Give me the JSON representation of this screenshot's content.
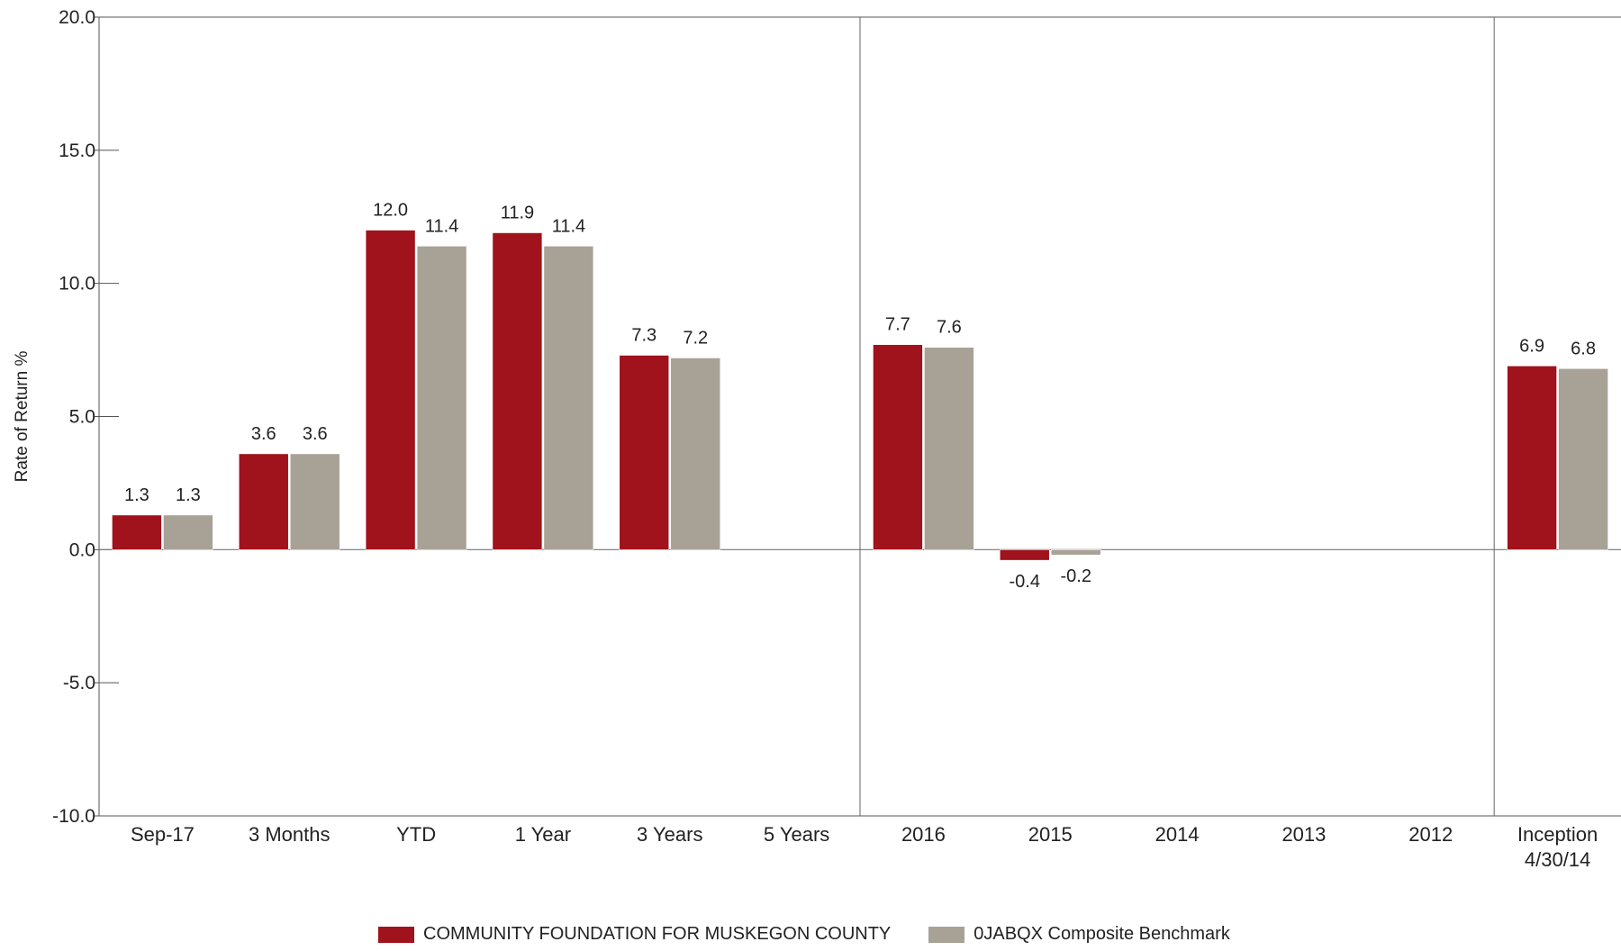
{
  "chart_data": {
    "type": "bar",
    "ylabel": "Rate of Return %",
    "ylim": [
      -10,
      20
    ],
    "yticks": [
      "20.0",
      "15.0",
      "10.0",
      "5.0",
      "0.0",
      "-5.0",
      "-10.0"
    ],
    "categories": [
      "Sep-17",
      "3 Months",
      "YTD",
      "1 Year",
      "3 Years",
      "5 Years",
      "2016",
      "2015",
      "2014",
      "2013",
      "2012",
      "Inception\n4/30/14"
    ],
    "groups_separated_after": [
      "5 Years",
      "2012"
    ],
    "series": [
      {
        "name": "COMMUNITY FOUNDATION FOR MUSKEGON COUNTY",
        "color": "#A0121C",
        "values": [
          1.3,
          3.6,
          12.0,
          11.9,
          7.3,
          null,
          7.7,
          -0.4,
          null,
          null,
          null,
          6.9
        ],
        "labels": [
          "1.3",
          "3.6",
          "12.0",
          "11.9",
          "7.3",
          "",
          "7.7",
          "-0.4",
          "",
          "",
          "",
          "6.9"
        ]
      },
      {
        "name": "0JABQX Composite Benchmark",
        "color": "#A8A196",
        "values": [
          1.3,
          3.6,
          11.4,
          11.4,
          7.2,
          null,
          7.6,
          -0.2,
          null,
          null,
          null,
          6.8
        ],
        "labels": [
          "1.3",
          "3.6",
          "11.4",
          "11.4",
          "7.2",
          "",
          "7.6",
          "-0.2",
          "",
          "",
          "",
          "6.8"
        ]
      }
    ],
    "grid": false,
    "legend_position": "bottom"
  }
}
